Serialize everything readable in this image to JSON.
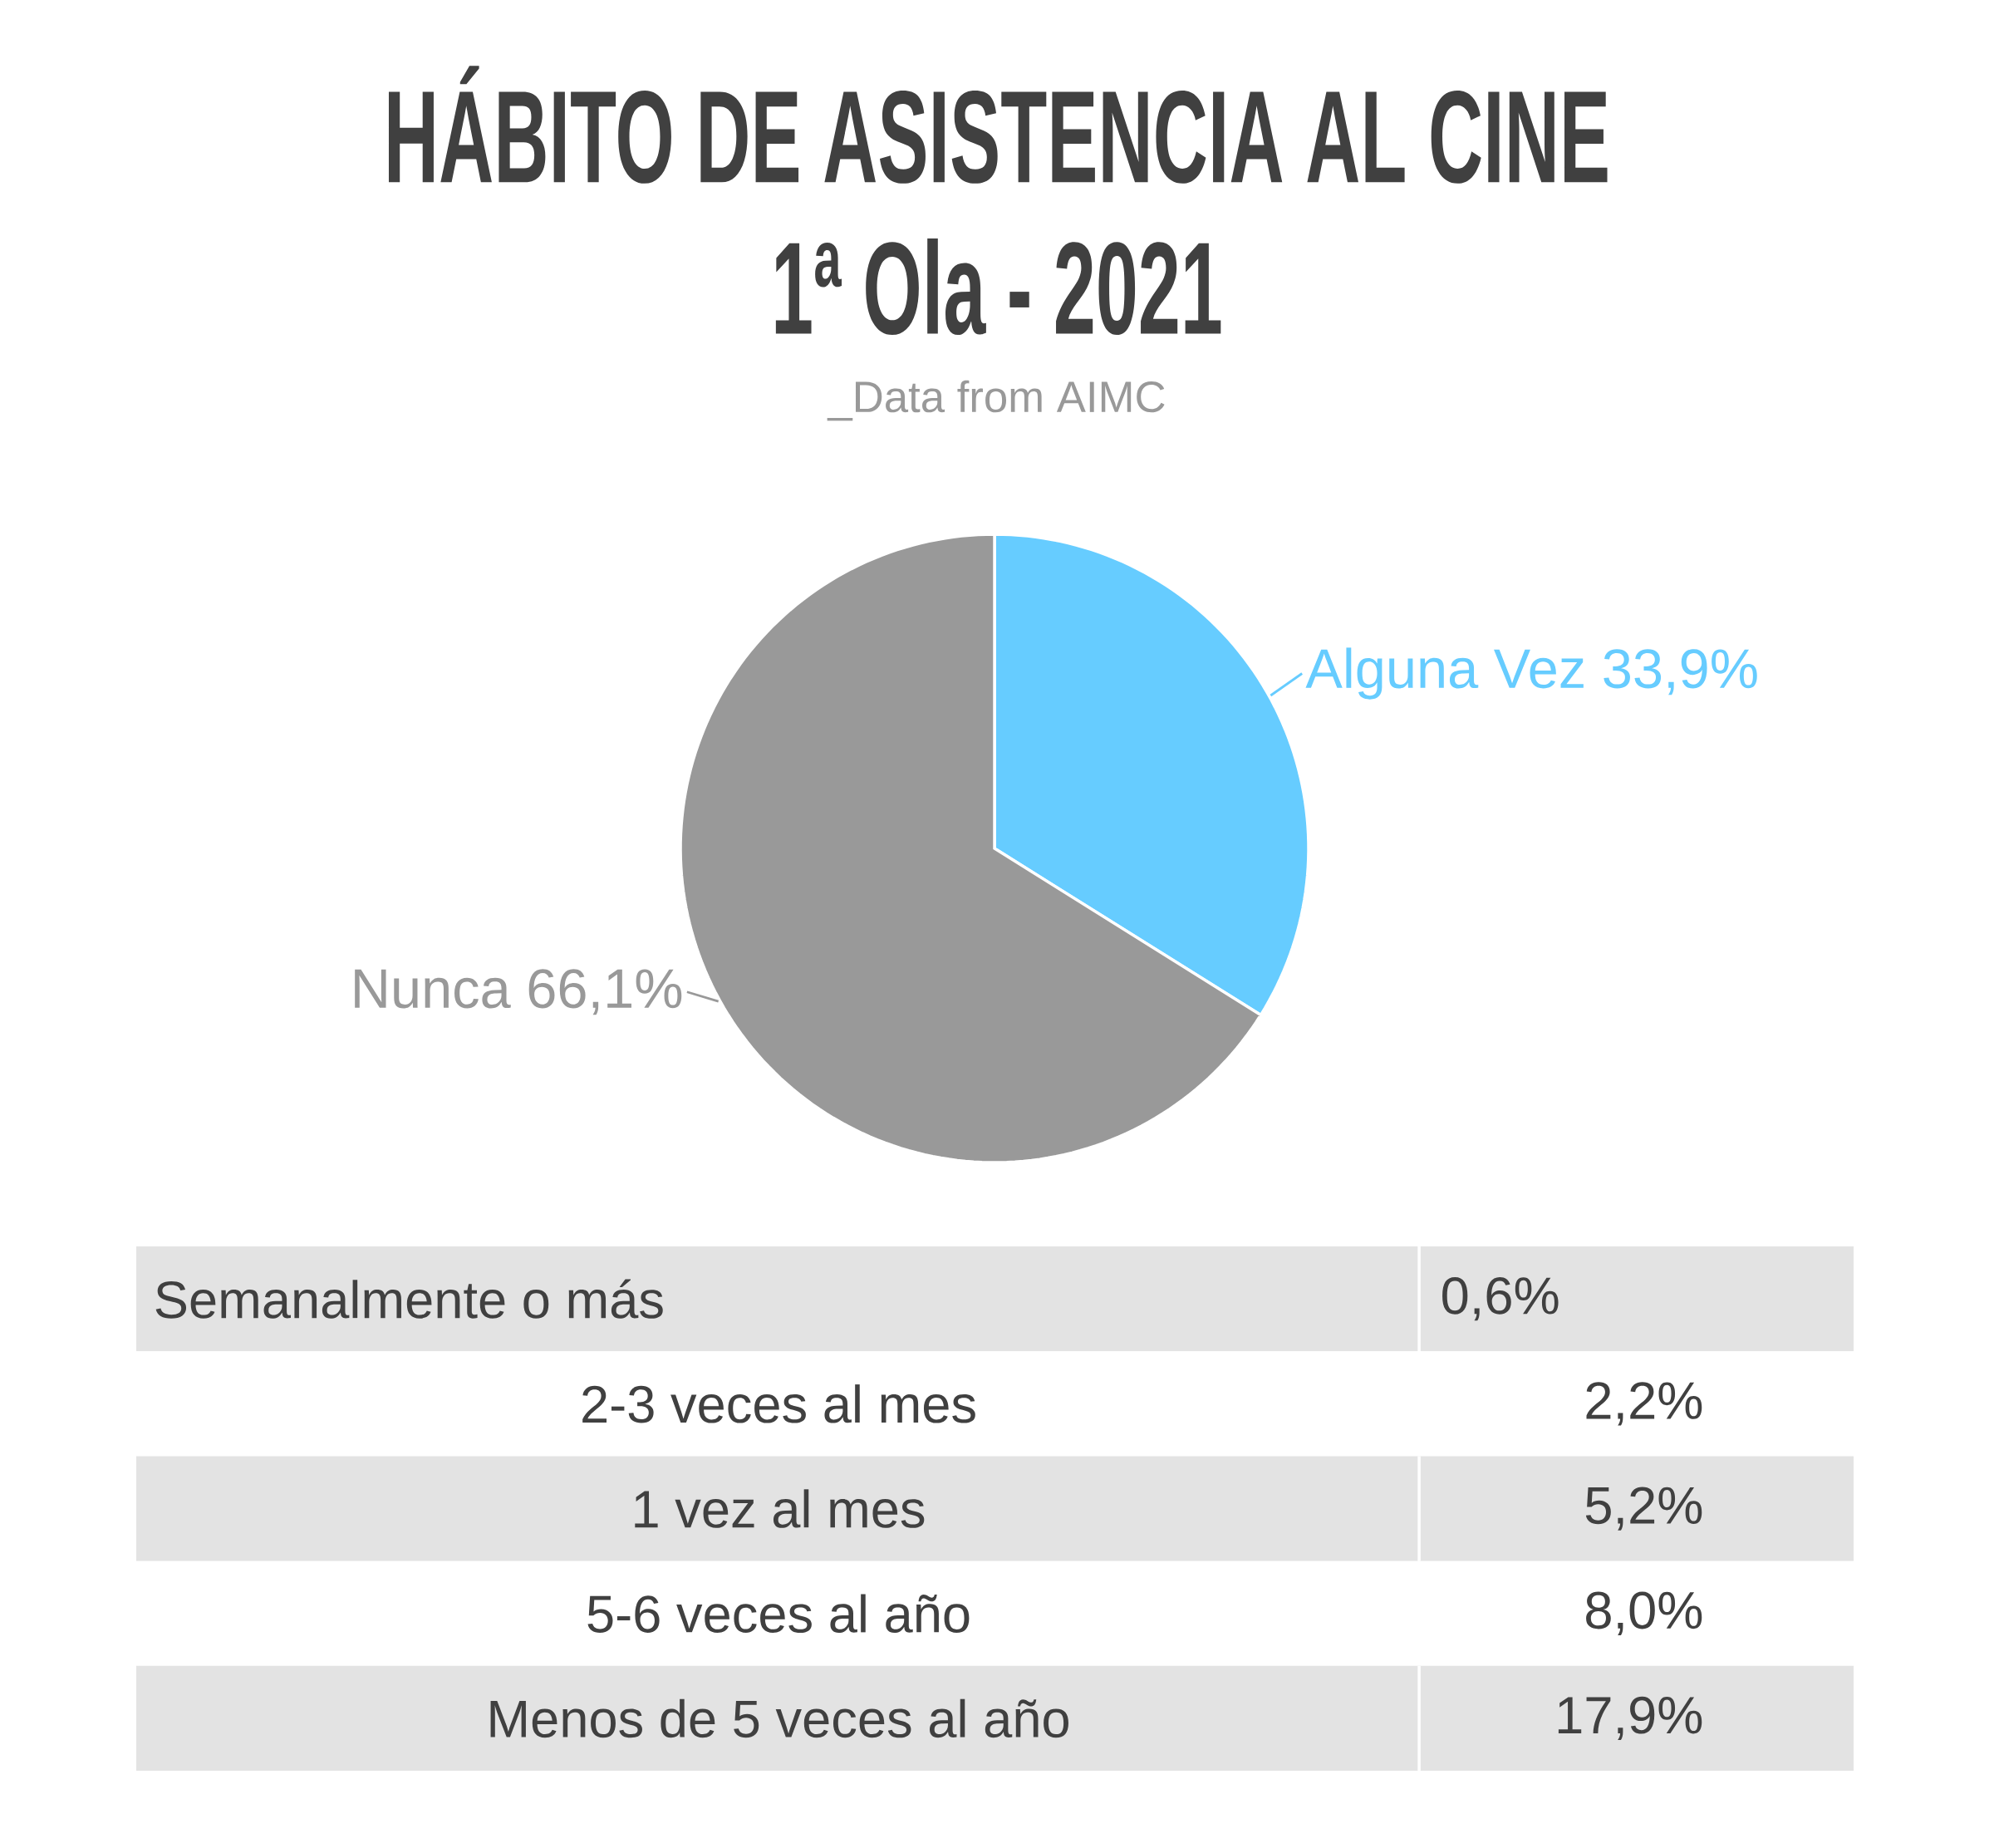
{
  "chart_data": [
    {
      "type": "pie",
      "title": "HÁBITO DE ASISTENCIA AL CINE",
      "subtitle": "1ª Ola - 2021",
      "annotations": [
        "_Data from AIMC"
      ],
      "categories": [
        "Alguna Vez",
        "Nunca"
      ],
      "values": [
        33.9,
        66.1
      ],
      "value_labels": [
        "33,9%",
        "66,1%"
      ],
      "colors": [
        "#66ccff",
        "#999999"
      ]
    },
    {
      "type": "other",
      "categories": [
        "Semanalmente o más",
        "2-3 veces al mes",
        "1 vez al mes",
        "5-6 veces al año",
        "Menos de 5 veces al año"
      ],
      "value_labels": [
        "0,6%",
        "2,2%",
        "5,2%",
        "8,0%",
        "17,9%"
      ],
      "colors": [
        "#e3e3e3",
        "#ffffff",
        "#e3e3e3",
        "#ffffff",
        "#e3e3e3"
      ]
    }
  ]
}
